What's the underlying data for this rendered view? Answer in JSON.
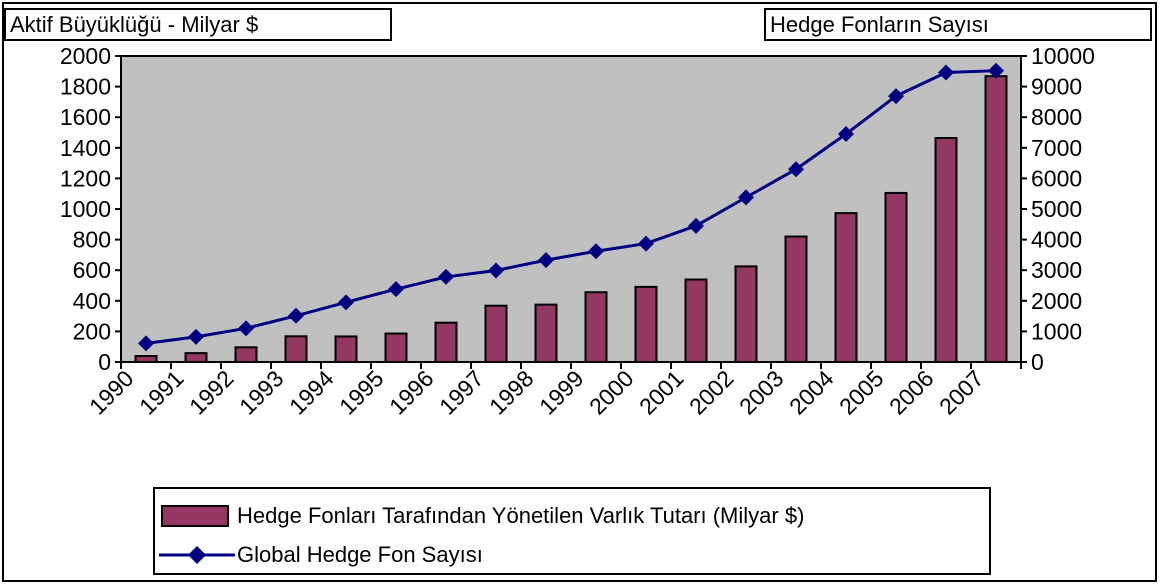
{
  "left_axis_title": "Aktif Büyüklüğü - Milyar $",
  "right_axis_title": "Hedge Fonların Sayısı",
  "legend": {
    "bar_label": "Hedge Fonları Tarafından Yönetilen Varlık Tutarı (Milyar $)",
    "line_label": "Global Hedge Fon Sayısı"
  },
  "colors": {
    "plot_background": "#c0c0c0",
    "bar_fill": "#933863",
    "line_color": "#000080",
    "marker_color": "#000080"
  },
  "chart_data": {
    "type": "bar",
    "categories": [
      "1990",
      "1991",
      "1992",
      "1993",
      "1994",
      "1995",
      "1996",
      "1997",
      "1998",
      "1999",
      "2000",
      "2001",
      "2002",
      "2003",
      "2004",
      "2005",
      "2006",
      "2007"
    ],
    "series": [
      {
        "name": "Hedge Fonları Tarafından Yönetilen Varlık Tutarı (Milyar $)",
        "type": "bar",
        "axis": "left",
        "values": [
          39,
          58,
          96,
          168,
          167,
          186,
          257,
          368,
          375,
          456,
          491,
          539,
          625,
          820,
          973,
          1105,
          1464,
          1868
        ]
      },
      {
        "name": "Global Hedge Fon Sayısı",
        "type": "line",
        "axis": "right",
        "values": [
          610,
          820,
          1100,
          1510,
          1950,
          2380,
          2780,
          2990,
          3330,
          3620,
          3870,
          4450,
          5380,
          6300,
          7450,
          8690,
          9460,
          9520
        ]
      }
    ],
    "left_axis": {
      "range": [
        0,
        2000
      ],
      "ticks": [
        "0",
        "200",
        "400",
        "600",
        "800",
        "1000",
        "1200",
        "1400",
        "1600",
        "1800",
        "2000"
      ]
    },
    "right_axis": {
      "range": [
        0,
        10000
      ],
      "ticks": [
        "0",
        "1000",
        "2000",
        "3000",
        "4000",
        "5000",
        "6000",
        "7000",
        "8000",
        "9000",
        "10000"
      ]
    },
    "grid": false,
    "legend_position": "bottom"
  }
}
